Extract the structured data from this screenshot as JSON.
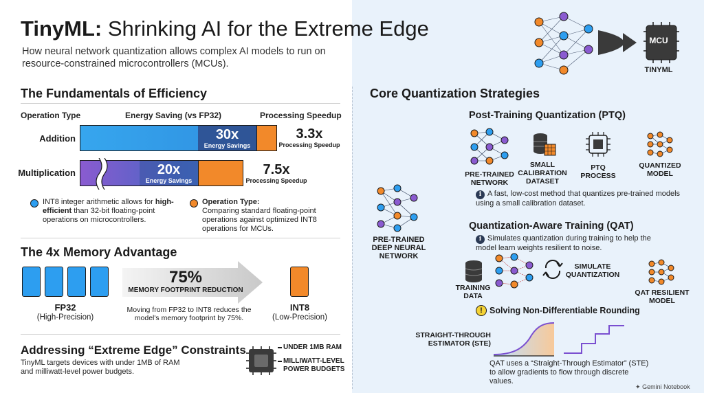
{
  "header": {
    "title_bold": "TinyML:",
    "title_rest": " Shrinking AI for the Extreme Edge",
    "subtitle": "How neural network quantization allows complex AI models to run on resource-constrained microcontrollers (MCUs).",
    "mcu_label": "MCU",
    "tinyml_label": "TINYML"
  },
  "fundamentals": {
    "heading": "The Fundamentals of Efficiency",
    "col_operation": "Operation Type",
    "col_energy": "Energy Saving (vs FP32)",
    "col_speed": "Processing Speedup",
    "rows": [
      {
        "op": "Addition",
        "saving": "30x",
        "saving_label": "Energy Savings",
        "speedup": "3.3x",
        "speedup_label": "Processing Speedup"
      },
      {
        "op": "Multiplication",
        "saving": "20x",
        "saving_label": "Energy Savings",
        "speedup": "7.5x",
        "speedup_label": "Processing Speedup"
      }
    ],
    "legend_blue_bold1": "INT8 integer arithmetic allows for ",
    "legend_blue_b": "high-efficient",
    "legend_blue_rest": " than 32-bit floating-point operations on microcontrollers.",
    "legend_orange_title": "Operation Type:",
    "legend_orange_text": "Comparing standard floating-point operations against optimized INT8 operations for MCUs.",
    "colors": {
      "blue": "#2f8fe0",
      "orange": "#f2892a",
      "purple": "#8a5bd0"
    }
  },
  "memory": {
    "heading": "The 4x Memory Advantage",
    "fp32_label": "FP32",
    "fp32_sub": "(High-Precision)",
    "percent": "75%",
    "reduction_label": "MEMORY FOOTPRINT REDUCTION",
    "note": "Moving from FP32 to INT8 reduces the model's memory footprint by 75%.",
    "int8_label": "INT8",
    "int8_sub": "(Low-Precision)"
  },
  "edge": {
    "heading": "Addressing “Extreme Edge” Constraints",
    "text": "TinyML targets devices with under 1MB of RAM and milliwatt-level power budgets.",
    "ram_label": "UNDER 1MB RAM",
    "power_label": "MILLIWATT-LEVEL POWER BUDGETS"
  },
  "core": {
    "heading": "Core Quantization Strategies",
    "deep_nn_label": "PRE-TRAINED DEEP NEURAL NETWORK",
    "ptq": {
      "heading": "Post-Training Quantization (PTQ)",
      "steps": [
        "PRE-TRAINED NETWORK",
        "SMALL CALIBRATION DATASET",
        "PTQ PROCESS",
        "QUANTIZED MODEL"
      ],
      "note": "A fast, low-cost method that quantizes pre-trained models using a small calibration dataset."
    },
    "qat": {
      "heading": "Quantization-Aware Training (QAT)",
      "note": "Simulates quantization during training to help the model learn weights resilient to noise.",
      "training_data": "TRAINING DATA",
      "simulate": "SIMULATE QUANTIZATION",
      "resilient": "QAT RESILIENT MODEL"
    },
    "rounding": {
      "heading": "Solving Non-Differentiable Rounding",
      "ste_label": "STRAIGHT-THROUGH ESTIMATOR (STE)",
      "note": "QAT uses a “Straight-Through Estimator” (STE) to allow gradients to flow through discrete values."
    }
  },
  "footer": {
    "brand": "Gemini Notebook"
  }
}
